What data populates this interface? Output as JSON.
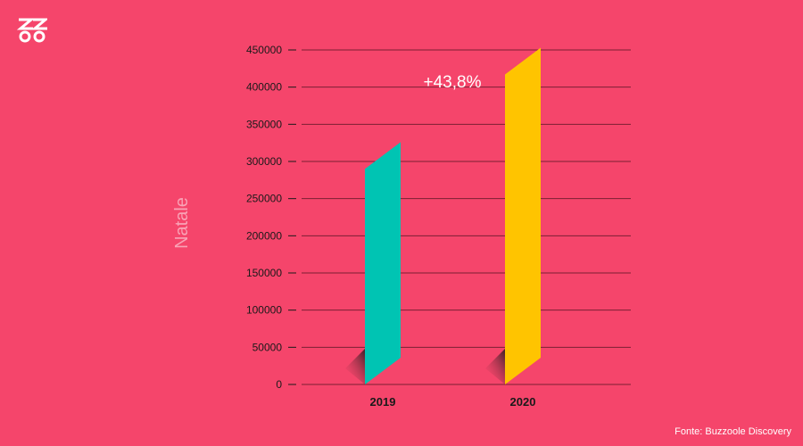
{
  "colors": {
    "background": "#f5456b",
    "bar_2019": "#00c4b3",
    "bar_2020": "#ffc400",
    "gridline": "#7a1f33",
    "text": "#1a1a1a",
    "ylabel": "#f9a3b6"
  },
  "logo": {
    "icon": "brand-logo-icon"
  },
  "chart_data": {
    "type": "bar",
    "categories": [
      "2019",
      "2020"
    ],
    "values": [
      290000,
      417000
    ],
    "ylabel": "Natale",
    "xlabel": "",
    "ylim": [
      0,
      450000
    ],
    "yticks": [
      "0",
      "50000",
      "100000",
      "150000",
      "200000",
      "250000",
      "300000",
      "350000",
      "400000",
      "450000"
    ],
    "grid": true,
    "annotation": "+43,8%"
  },
  "source": "Fonte: Buzzoole Discovery"
}
